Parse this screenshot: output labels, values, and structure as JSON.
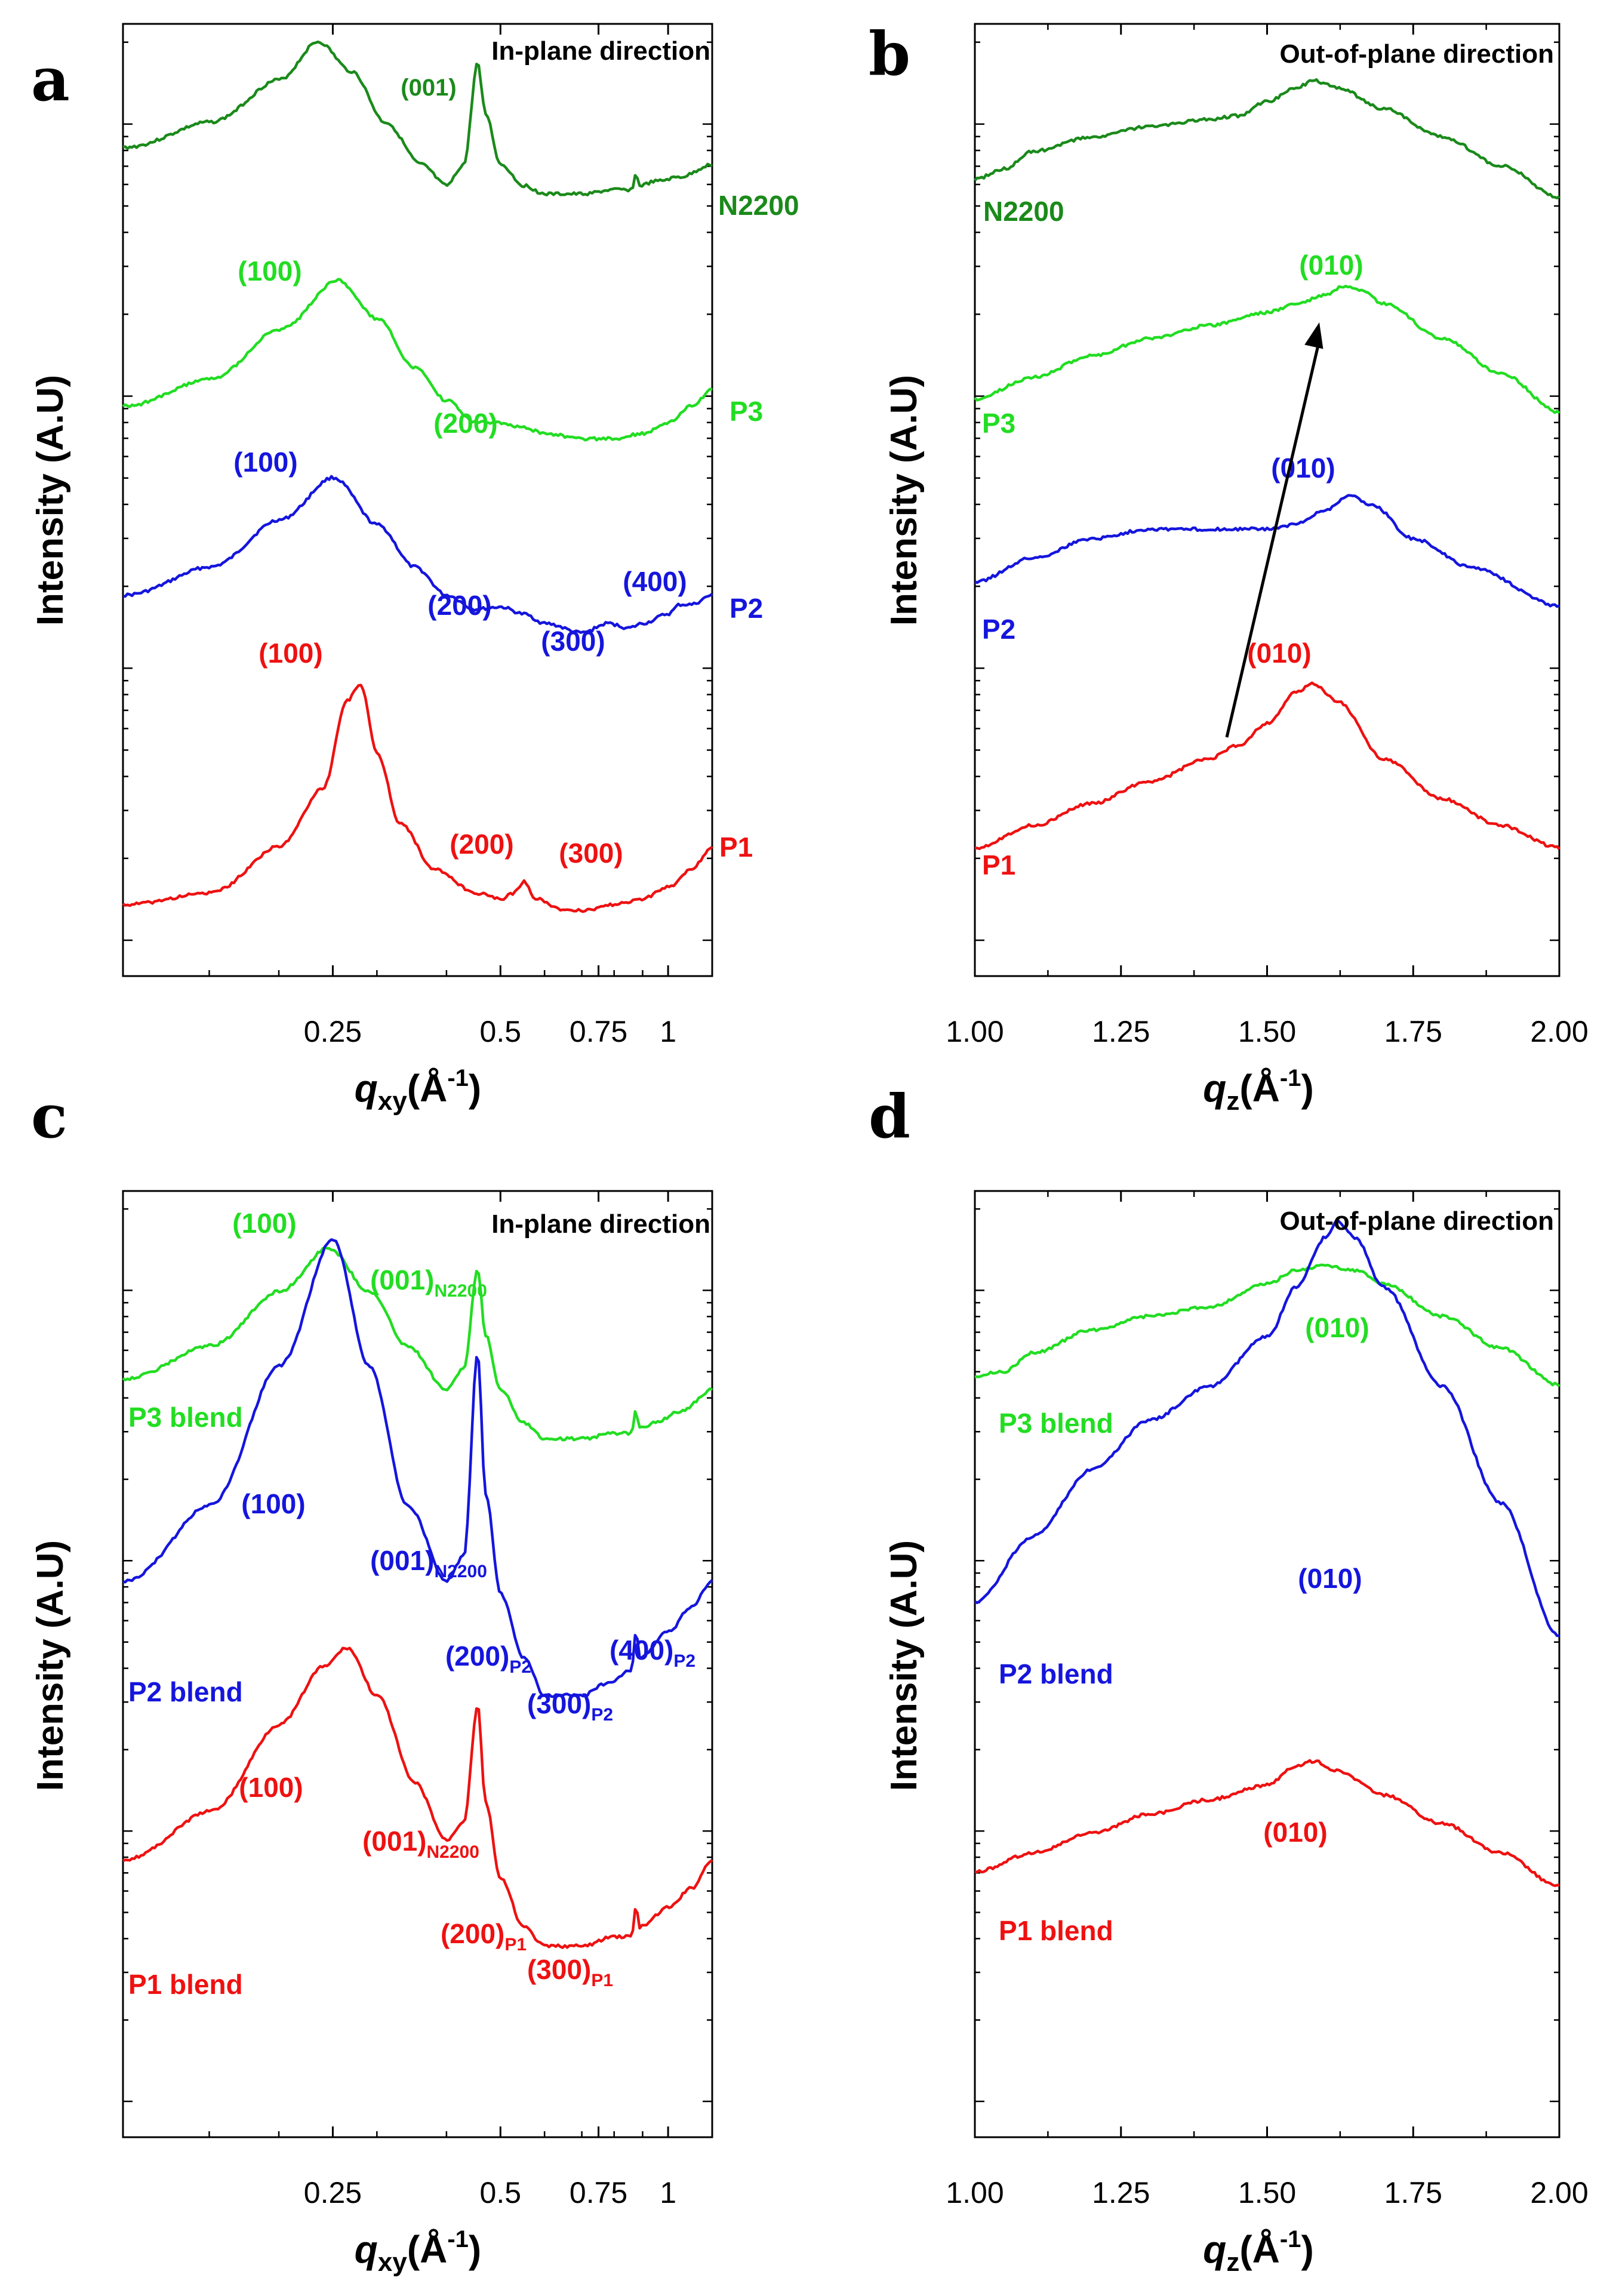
{
  "colors": {
    "N2200": "#1a8a1a",
    "P3": "#22dd22",
    "P2": "#1515dd",
    "P1": "#ee1111",
    "axis": "#000000"
  },
  "chart_data": [
    {
      "panel": "a",
      "type": "line",
      "direction_label": "In-plane direction",
      "xlabel_main": "q",
      "xlabel_sub": "xy",
      "xlabel_unit_pre": "(Å",
      "xlabel_unit_sup": "-1",
      "xlabel_unit_post": ")",
      "ylabel": "Intensity (A.U)",
      "xscale": "log",
      "xlim": [
        0.105,
        1.2
      ],
      "xticks": [
        {
          "value": 0.25,
          "label": "0.25"
        },
        {
          "value": 0.5,
          "label": "0.5"
        },
        {
          "value": 0.75,
          "label": "0.75"
        },
        {
          "value": 1.0,
          "label": "1"
        }
      ],
      "series": [
        {
          "name": "N2200",
          "color": "#1a8a1a",
          "x": [
            0.105,
            0.15,
            0.2,
            0.235,
            0.27,
            0.31,
            0.36,
            0.4,
            0.43,
            0.455,
            0.47,
            0.5,
            0.55,
            0.6,
            0.7,
            0.8,
            0.86,
            0.875,
            0.89,
            0.95,
            1.05,
            1.2
          ],
          "y": [
            0.8,
            0.86,
            0.96,
            1.05,
            0.98,
            0.86,
            0.76,
            0.71,
            0.76,
            1.0,
            0.88,
            0.76,
            0.71,
            0.69,
            0.69,
            0.7,
            0.7,
            0.735,
            0.71,
            0.72,
            0.73,
            0.76
          ]
        },
        {
          "name": "P3",
          "color": "#22dd22",
          "x": [
            0.105,
            0.15,
            0.2,
            0.255,
            0.3,
            0.35,
            0.4,
            0.45,
            0.5,
            0.55,
            0.6,
            0.7,
            0.8,
            0.9,
            1.0,
            1.1,
            1.2
          ],
          "y": [
            0.77,
            0.82,
            0.91,
            1.0,
            0.93,
            0.84,
            0.78,
            0.74,
            0.74,
            0.73,
            0.72,
            0.71,
            0.71,
            0.72,
            0.74,
            0.77,
            0.8
          ]
        },
        {
          "name": "P2",
          "color": "#1515dd",
          "x": [
            0.105,
            0.15,
            0.2,
            0.25,
            0.3,
            0.35,
            0.4,
            0.45,
            0.5,
            0.55,
            0.6,
            0.7,
            0.78,
            0.85,
            0.9,
            1.0,
            1.05,
            1.1,
            1.2
          ],
          "y": [
            0.8,
            0.86,
            0.96,
            1.05,
            0.95,
            0.86,
            0.8,
            0.77,
            0.775,
            0.76,
            0.74,
            0.72,
            0.74,
            0.73,
            0.74,
            0.76,
            0.78,
            0.78,
            0.8
          ]
        },
        {
          "name": "P1",
          "color": "#ee1111",
          "x": [
            0.105,
            0.15,
            0.2,
            0.24,
            0.265,
            0.28,
            0.3,
            0.33,
            0.38,
            0.45,
            0.5,
            0.53,
            0.55,
            0.58,
            0.65,
            0.7,
            0.8,
            0.9,
            1.0,
            1.1,
            1.2
          ],
          "y": [
            0.7,
            0.72,
            0.8,
            0.9,
            1.05,
            1.08,
            0.96,
            0.84,
            0.76,
            0.72,
            0.71,
            0.72,
            0.74,
            0.71,
            0.69,
            0.69,
            0.7,
            0.71,
            0.73,
            0.76,
            0.8
          ]
        }
      ],
      "annotations": [
        {
          "text": "(001)",
          "color": "#1a8a1a"
        },
        {
          "text": "(100)",
          "color": "#22dd22"
        },
        {
          "text": "(200)",
          "color": "#22dd22"
        },
        {
          "text": "(100)",
          "color": "#1515dd"
        },
        {
          "text": "(200)",
          "color": "#1515dd"
        },
        {
          "text": "(300)",
          "color": "#1515dd"
        },
        {
          "text": "(400)",
          "color": "#1515dd"
        },
        {
          "text": "(100)",
          "color": "#ee1111"
        },
        {
          "text": "(200)",
          "color": "#ee1111"
        },
        {
          "text": "(300)",
          "color": "#ee1111"
        }
      ],
      "series_labels": [
        "N2200",
        "P3",
        "P2",
        "P1"
      ]
    },
    {
      "panel": "b",
      "type": "line",
      "direction_label": "Out-of-plane direction",
      "xlabel_main": "q",
      "xlabel_sub": "z",
      "xlabel_unit_pre": "(Å",
      "xlabel_unit_sup": "-1",
      "xlabel_unit_post": ")",
      "ylabel": "Intensity (A.U)",
      "xscale": "linear",
      "xlim": [
        1.0,
        2.0
      ],
      "xticks": [
        {
          "value": 1.0,
          "label": "1.00"
        },
        {
          "value": 1.25,
          "label": "1.25"
        },
        {
          "value": 1.5,
          "label": "1.50"
        },
        {
          "value": 1.75,
          "label": "1.75"
        },
        {
          "value": 2.0,
          "label": "2.00"
        }
      ],
      "series": [
        {
          "name": "N2200",
          "color": "#1a8a1a",
          "x": [
            1.0,
            1.05,
            1.1,
            1.2,
            1.3,
            1.4,
            1.45,
            1.5,
            1.55,
            1.58,
            1.62,
            1.7,
            1.8,
            1.9,
            2.0
          ],
          "y": [
            0.8,
            0.83,
            0.88,
            0.92,
            0.95,
            0.97,
            0.98,
            1.02,
            1.06,
            1.08,
            1.06,
            1.0,
            0.92,
            0.84,
            0.75
          ]
        },
        {
          "name": "P3",
          "color": "#22dd22",
          "x": [
            1.0,
            1.1,
            1.2,
            1.3,
            1.4,
            1.5,
            1.55,
            1.6,
            1.63,
            1.66,
            1.7,
            1.8,
            1.9,
            2.0
          ],
          "y": [
            0.8,
            0.85,
            0.9,
            0.94,
            0.97,
            1.0,
            1.02,
            1.04,
            1.06,
            1.05,
            1.02,
            0.94,
            0.86,
            0.77
          ]
        },
        {
          "name": "P2",
          "color": "#1515dd",
          "x": [
            1.0,
            1.1,
            1.2,
            1.3,
            1.4,
            1.5,
            1.55,
            1.6,
            1.64,
            1.68,
            1.75,
            1.85,
            2.0
          ],
          "y": [
            0.85,
            0.9,
            0.94,
            0.96,
            0.96,
            0.96,
            0.97,
            1.0,
            1.03,
            1.01,
            0.94,
            0.88,
            0.8
          ]
        },
        {
          "name": "P1",
          "color": "#ee1111",
          "x": [
            1.0,
            1.1,
            1.2,
            1.3,
            1.4,
            1.45,
            1.5,
            1.55,
            1.58,
            1.62,
            1.7,
            1.8,
            1.9,
            2.0
          ],
          "y": [
            0.77,
            0.82,
            0.87,
            0.92,
            0.97,
            1.0,
            1.05,
            1.12,
            1.14,
            1.1,
            0.97,
            0.88,
            0.82,
            0.77
          ]
        }
      ],
      "annotations": [
        {
          "text": "(010)",
          "color": "#22dd22"
        },
        {
          "text": "(010)",
          "color": "#1515dd"
        },
        {
          "text": "(010)",
          "color": "#ee1111"
        }
      ],
      "series_labels": [
        "N2200",
        "P3",
        "P2",
        "P1"
      ]
    },
    {
      "panel": "c",
      "type": "line",
      "direction_label": "In-plane direction",
      "xlabel_main": "q",
      "xlabel_sub": "xy",
      "xlabel_unit_pre": "(Å",
      "xlabel_unit_sup": "-1",
      "xlabel_unit_post": ")",
      "ylabel": "Intensity (A.U)",
      "xscale": "log",
      "xlim": [
        0.105,
        1.2
      ],
      "xticks": [
        {
          "value": 0.25,
          "label": "0.25"
        },
        {
          "value": 0.5,
          "label": "0.5"
        },
        {
          "value": 0.75,
          "label": "0.75"
        },
        {
          "value": 1.0,
          "label": "1"
        }
      ],
      "series": [
        {
          "name": "P3 blend",
          "color": "#22dd22",
          "x": [
            0.105,
            0.15,
            0.2,
            0.245,
            0.29,
            0.34,
            0.4,
            0.43,
            0.455,
            0.47,
            0.5,
            0.55,
            0.6,
            0.7,
            0.8,
            0.86,
            0.875,
            0.89,
            0.95,
            1.05,
            1.2
          ],
          "y": [
            0.82,
            0.88,
            0.98,
            1.06,
            0.98,
            0.88,
            0.8,
            0.84,
            1.02,
            0.9,
            0.8,
            0.74,
            0.71,
            0.71,
            0.72,
            0.72,
            0.76,
            0.73,
            0.74,
            0.76,
            0.8
          ]
        },
        {
          "name": "P2 blend",
          "color": "#1515dd",
          "x": [
            0.105,
            0.15,
            0.2,
            0.25,
            0.29,
            0.34,
            0.4,
            0.43,
            0.455,
            0.47,
            0.5,
            0.55,
            0.6,
            0.7,
            0.78,
            0.86,
            0.875,
            0.89,
            1.0,
            1.1,
            1.2
          ],
          "y": [
            0.78,
            0.84,
            0.95,
            1.05,
            0.95,
            0.84,
            0.78,
            0.8,
            0.96,
            0.85,
            0.77,
            0.72,
            0.69,
            0.69,
            0.7,
            0.71,
            0.74,
            0.72,
            0.74,
            0.76,
            0.78
          ]
        },
        {
          "name": "P1 blend",
          "color": "#ee1111",
          "x": [
            0.105,
            0.15,
            0.2,
            0.24,
            0.265,
            0.3,
            0.35,
            0.4,
            0.43,
            0.455,
            0.47,
            0.5,
            0.55,
            0.6,
            0.7,
            0.8,
            0.86,
            0.875,
            0.89,
            1.0,
            1.1,
            1.2
          ],
          "y": [
            0.8,
            0.85,
            0.94,
            1.0,
            1.02,
            0.97,
            0.88,
            0.82,
            0.84,
            0.96,
            0.86,
            0.78,
            0.73,
            0.71,
            0.71,
            0.72,
            0.72,
            0.75,
            0.73,
            0.75,
            0.77,
            0.8
          ]
        }
      ],
      "annotations": [
        {
          "text": "(100)",
          "color": "#22dd22"
        },
        {
          "text": "(001)",
          "sub": "N2200",
          "color": "#22dd22"
        },
        {
          "text": "(100)",
          "color": "#1515dd"
        },
        {
          "text": "(001)",
          "sub": "N2200",
          "color": "#1515dd"
        },
        {
          "text": "(200)",
          "sub": "P2",
          "color": "#1515dd"
        },
        {
          "text": "(300)",
          "sub": "P2",
          "color": "#1515dd"
        },
        {
          "text": "(400)",
          "sub": "P2",
          "color": "#1515dd"
        },
        {
          "text": "(100)",
          "color": "#ee1111"
        },
        {
          "text": "(001)",
          "sub": "N2200",
          "color": "#ee1111"
        },
        {
          "text": "(200)",
          "sub": "P1",
          "color": "#ee1111"
        },
        {
          "text": "(300)",
          "sub": "P1",
          "color": "#ee1111"
        }
      ],
      "series_labels": [
        "P3 blend",
        "P2 blend",
        "P1 blend"
      ]
    },
    {
      "panel": "d",
      "type": "line",
      "direction_label": "Out-of-plane direction",
      "xlabel_main": "q",
      "xlabel_sub": "z",
      "xlabel_unit_pre": "(Å",
      "xlabel_unit_sup": "-1",
      "xlabel_unit_post": ")",
      "ylabel": "Intensity (A.U)",
      "xscale": "linear",
      "xlim": [
        1.0,
        2.0
      ],
      "xticks": [
        {
          "value": 1.0,
          "label": "1.00"
        },
        {
          "value": 1.25,
          "label": "1.25"
        },
        {
          "value": 1.5,
          "label": "1.50"
        },
        {
          "value": 1.75,
          "label": "1.75"
        },
        {
          "value": 2.0,
          "label": "2.00"
        }
      ],
      "series": [
        {
          "name": "P3 blend",
          "color": "#22dd22",
          "x": [
            1.0,
            1.05,
            1.1,
            1.2,
            1.3,
            1.4,
            1.5,
            1.55,
            1.6,
            1.65,
            1.7,
            1.8,
            1.9,
            2.0
          ],
          "y": [
            0.8,
            0.81,
            0.85,
            0.9,
            0.93,
            0.95,
            1.0,
            1.03,
            1.04,
            1.03,
            1.0,
            0.93,
            0.86,
            0.78
          ]
        },
        {
          "name": "P2 blend",
          "color": "#1515dd",
          "x": [
            1.0,
            1.1,
            1.2,
            1.3,
            1.4,
            1.5,
            1.55,
            1.6,
            1.62,
            1.65,
            1.7,
            1.8,
            1.9,
            2.0
          ],
          "y": [
            0.8,
            0.84,
            0.88,
            0.91,
            0.93,
            0.96,
            0.99,
            1.02,
            1.03,
            1.02,
            0.99,
            0.93,
            0.86,
            0.78
          ]
        },
        {
          "name": "P1 blend",
          "color": "#ee1111",
          "x": [
            1.0,
            1.1,
            1.2,
            1.3,
            1.4,
            1.5,
            1.55,
            1.58,
            1.62,
            1.7,
            1.8,
            1.9,
            2.0
          ],
          "y": [
            0.8,
            0.84,
            0.88,
            0.92,
            0.95,
            0.98,
            1.02,
            1.03,
            1.01,
            0.96,
            0.9,
            0.84,
            0.77
          ]
        }
      ],
      "annotations": [
        {
          "text": "(010)",
          "color": "#22dd22"
        },
        {
          "text": "(010)",
          "color": "#1515dd"
        },
        {
          "text": "(010)",
          "color": "#ee1111"
        }
      ],
      "series_labels": [
        "P3 blend",
        "P2 blend",
        "P1 blend"
      ]
    }
  ]
}
